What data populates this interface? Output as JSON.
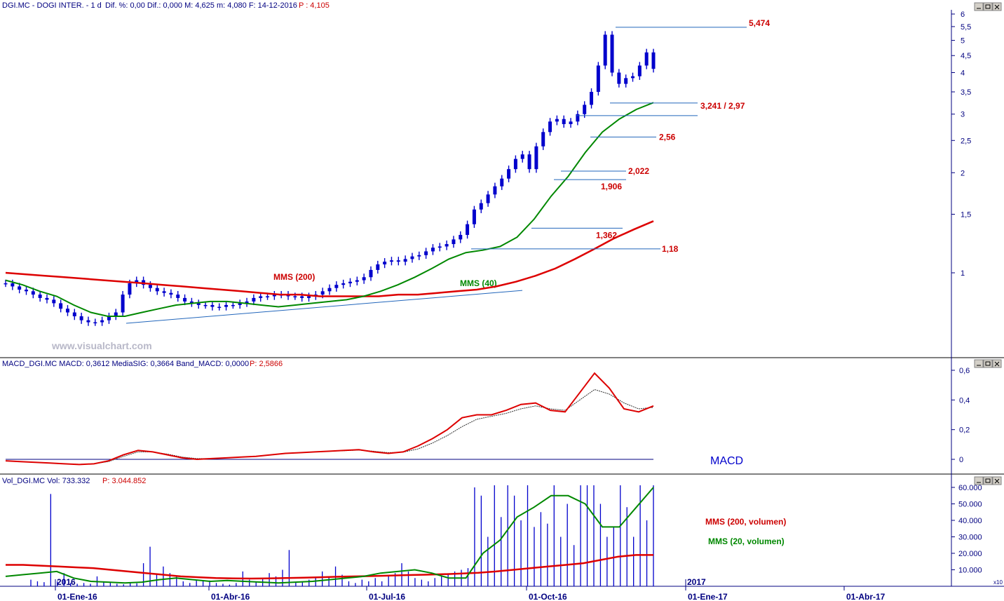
{
  "panels": {
    "price": {
      "title": "DGI.MC - DOGI INTER. - 1 d",
      "stats": "Dif. %: 0,00  Dif.: 0,000  M: 4,625  m: 4,080  F: 14-12-2016",
      "last": "P : 4,105"
    },
    "macd": {
      "title": "MACD_DGI.MC MACD: 0,3612 MediaSIG: 0,3664 Band_MACD: 0,0000",
      "last": "P: 2,5866",
      "label": "MACD"
    },
    "volume": {
      "title": "Vol_DGI.MC Vol: 733.332",
      "last": "P: 3.044.852",
      "multiplier": "x10"
    }
  },
  "watermark": "www.visualchart.com",
  "annotations": {
    "mms200": "MMS (200)",
    "mms40": "MMS (40)",
    "vol200": "MMS (200, volumen)",
    "vol20": "MMS (20, volumen)"
  },
  "colors": {
    "candles": "#0000cc",
    "mms200": "#dd0000",
    "mms40": "#008800",
    "levels": "#2266bb",
    "text_red": "#cc0000",
    "axis": "#000080"
  },
  "chart_data": [
    {
      "type": "line",
      "name": "price",
      "yscale": "log",
      "ylim": [
        0.62,
        6.2
      ],
      "yticks": [
        "6",
        "5,5",
        "5",
        "4,5",
        "4",
        "3,5",
        "3",
        "2,5",
        "2",
        "1,5",
        "1"
      ],
      "xticks": [
        "01-Ene-16",
        "01-Abr-16",
        "01-Jul-16",
        "01-Oct-16",
        "01-Ene-17",
        "01-Abr-17"
      ],
      "year_labels": [
        "2016",
        "2017"
      ],
      "levels": [
        {
          "label": "5,474",
          "value": 5.474
        },
        {
          "label": "3,241 / 2,97",
          "value": 3.241,
          "value2": 2.97
        },
        {
          "label": "2,56",
          "value": 2.56
        },
        {
          "label": "2,022",
          "value": 2.022
        },
        {
          "label": "1,906",
          "value": 1.906
        },
        {
          "label": "1,362",
          "value": 1.362
        },
        {
          "label": "1,18",
          "value": 1.18
        }
      ],
      "close_series": [
        0.93,
        0.91,
        0.89,
        0.88,
        0.86,
        0.84,
        0.83,
        0.81,
        0.78,
        0.76,
        0.74,
        0.72,
        0.71,
        0.71,
        0.72,
        0.74,
        0.76,
        0.86,
        0.93,
        0.95,
        0.92,
        0.9,
        0.88,
        0.87,
        0.86,
        0.84,
        0.82,
        0.81,
        0.8,
        0.8,
        0.79,
        0.79,
        0.8,
        0.8,
        0.81,
        0.82,
        0.84,
        0.85,
        0.85,
        0.86,
        0.86,
        0.85,
        0.85,
        0.84,
        0.85,
        0.86,
        0.88,
        0.9,
        0.92,
        0.93,
        0.94,
        0.95,
        0.97,
        1.02,
        1.06,
        1.08,
        1.09,
        1.08,
        1.1,
        1.12,
        1.13,
        1.16,
        1.19,
        1.2,
        1.22,
        1.26,
        1.3,
        1.4,
        1.55,
        1.62,
        1.72,
        1.82,
        1.92,
        2.05,
        2.2,
        2.27,
        2.05,
        2.4,
        2.65,
        2.85,
        2.9,
        2.8,
        2.85,
        3.0,
        3.2,
        3.5,
        4.2,
        5.2,
        4.0,
        3.7,
        3.85,
        3.9,
        4.2,
        4.6,
        4.105
      ],
      "mms200_series": [
        1.0,
        0.99,
        0.98,
        0.97,
        0.96,
        0.95,
        0.94,
        0.93,
        0.92,
        0.91,
        0.9,
        0.89,
        0.88,
        0.87,
        0.86,
        0.86,
        0.85,
        0.85,
        0.85,
        0.85,
        0.86,
        0.86,
        0.87,
        0.88,
        0.89,
        0.91,
        0.94,
        0.98,
        1.03,
        1.1,
        1.18,
        1.27,
        1.35,
        1.43
      ],
      "mms40_series": [
        0.95,
        0.92,
        0.88,
        0.85,
        0.8,
        0.76,
        0.74,
        0.74,
        0.76,
        0.78,
        0.8,
        0.81,
        0.82,
        0.82,
        0.81,
        0.8,
        0.79,
        0.8,
        0.81,
        0.82,
        0.83,
        0.85,
        0.88,
        0.92,
        0.97,
        1.03,
        1.1,
        1.15,
        1.17,
        1.2,
        1.28,
        1.45,
        1.7,
        1.95,
        2.3,
        2.65,
        2.9,
        3.1,
        3.25
      ]
    },
    {
      "type": "line",
      "name": "macd",
      "ylim": [
        -0.05,
        0.62
      ],
      "yticks": [
        "0,6",
        "0,4",
        "0,2",
        "0"
      ],
      "macd_series": [
        -0.01,
        -0.015,
        -0.02,
        -0.025,
        -0.03,
        -0.035,
        -0.03,
        -0.01,
        0.03,
        0.06,
        0.05,
        0.03,
        0.01,
        0.0,
        0.005,
        0.01,
        0.015,
        0.02,
        0.03,
        0.04,
        0.045,
        0.05,
        0.055,
        0.06,
        0.065,
        0.05,
        0.04,
        0.05,
        0.09,
        0.14,
        0.2,
        0.28,
        0.3,
        0.3,
        0.33,
        0.37,
        0.38,
        0.33,
        0.32,
        0.45,
        0.58,
        0.48,
        0.34,
        0.32,
        0.36
      ],
      "signal_series": [
        -0.01,
        -0.015,
        -0.02,
        -0.025,
        -0.03,
        -0.033,
        -0.03,
        -0.015,
        0.02,
        0.05,
        0.05,
        0.035,
        0.015,
        0.005,
        0.005,
        0.01,
        0.015,
        0.02,
        0.03,
        0.04,
        0.045,
        0.05,
        0.055,
        0.058,
        0.062,
        0.055,
        0.045,
        0.048,
        0.07,
        0.11,
        0.16,
        0.22,
        0.27,
        0.29,
        0.31,
        0.34,
        0.36,
        0.34,
        0.33,
        0.4,
        0.47,
        0.44,
        0.38,
        0.34,
        0.35
      ]
    },
    {
      "type": "bar",
      "name": "volume",
      "ylim": [
        0,
        63000
      ],
      "yticks": [
        "60.000",
        "50.000",
        "40.000",
        "30.000",
        "20.000",
        "10.000"
      ],
      "volume_series": [
        4000,
        3000,
        2500,
        56000,
        3000,
        8000,
        2000,
        1500,
        2000,
        1500,
        6000,
        3000,
        2500,
        1500,
        1200,
        2000,
        1800,
        14000,
        24000,
        7000,
        12000,
        8000,
        6000,
        3000,
        2000,
        4000,
        3000,
        3500,
        2000,
        1500,
        1000,
        2000,
        9000,
        4000,
        3000,
        5000,
        8000,
        6000,
        10000,
        22000,
        2500,
        3000,
        4000,
        5000,
        9000,
        6000,
        12000,
        7000,
        3000,
        2000,
        4000,
        3000,
        5000,
        3000,
        6000,
        8000,
        14000,
        9000,
        5000,
        4000,
        3000,
        5000,
        6000,
        7000,
        9000,
        10000,
        11000,
        60000,
        55000,
        30000,
        64000,
        42000,
        64000,
        55000,
        40000,
        64000,
        36000,
        45000,
        38000,
        64000,
        30000,
        50000,
        25000,
        64000,
        64000,
        64000,
        50000,
        30000,
        36000,
        64000,
        48000,
        30000,
        64000,
        40000,
        64000
      ],
      "mms200_vol_series": [
        13000,
        13000,
        12500,
        12000,
        11500,
        11000,
        10000,
        9000,
        8000,
        7000,
        6000,
        5500,
        5000,
        4800,
        4700,
        4800,
        5000,
        5200,
        5500,
        5800,
        6000,
        6200,
        6500,
        6800,
        7000,
        7300,
        7700,
        8200,
        9000,
        10000,
        11000,
        12000,
        13000,
        14000,
        16000,
        18000,
        19000,
        19000
      ],
      "mms20_vol_series": [
        6000,
        7000,
        8000,
        9000,
        5000,
        3000,
        2500,
        2000,
        2500,
        4000,
        5000,
        4000,
        3000,
        3500,
        3000,
        2500,
        2000,
        2500,
        3000,
        4000,
        5000,
        6000,
        8000,
        9000,
        10000,
        8000,
        5000,
        5000,
        20000,
        28000,
        42000,
        48000,
        55000,
        55000,
        50000,
        36000,
        36000,
        48000,
        60000
      ]
    }
  ]
}
